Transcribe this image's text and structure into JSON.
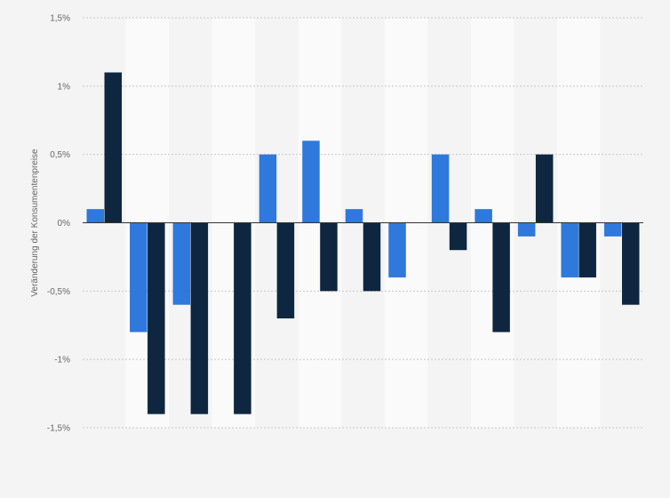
{
  "chart_data": {
    "type": "bar",
    "title": "",
    "xlabel": "",
    "ylabel": "Veränderung der Konsumentenpreise",
    "ylim": [
      -1.5,
      1.5
    ],
    "yticks": [
      {
        "value": 1.5,
        "label": "1,5%"
      },
      {
        "value": 1,
        "label": "1%"
      },
      {
        "value": 0.5,
        "label": "0,5%"
      },
      {
        "value": 0,
        "label": "0%"
      },
      {
        "value": -0.5,
        "label": "-0,5%"
      },
      {
        "value": -1,
        "label": "-1%"
      },
      {
        "value": -1.5,
        "label": "-1,5%"
      }
    ],
    "categories": [
      "",
      "",
      "",
      "",
      "",
      "",
      "",
      "",
      "",
      "",
      "",
      "",
      ""
    ],
    "grid": true,
    "legend": "none",
    "series": [
      {
        "color": "#2f78dc",
        "values": [
          0.1,
          -0.8,
          -0.6,
          0,
          0.5,
          0.6,
          0.1,
          -0.4,
          0.5,
          0.1,
          -0.1,
          -0.4,
          -0.1
        ]
      },
      {
        "color": "#0f2640",
        "values": [
          1.1,
          -1.4,
          -1.4,
          -1.4,
          -0.7,
          -0.5,
          -0.5,
          0,
          -0.2,
          -0.8,
          0.5,
          -0.4,
          -0.6
        ]
      }
    ]
  }
}
